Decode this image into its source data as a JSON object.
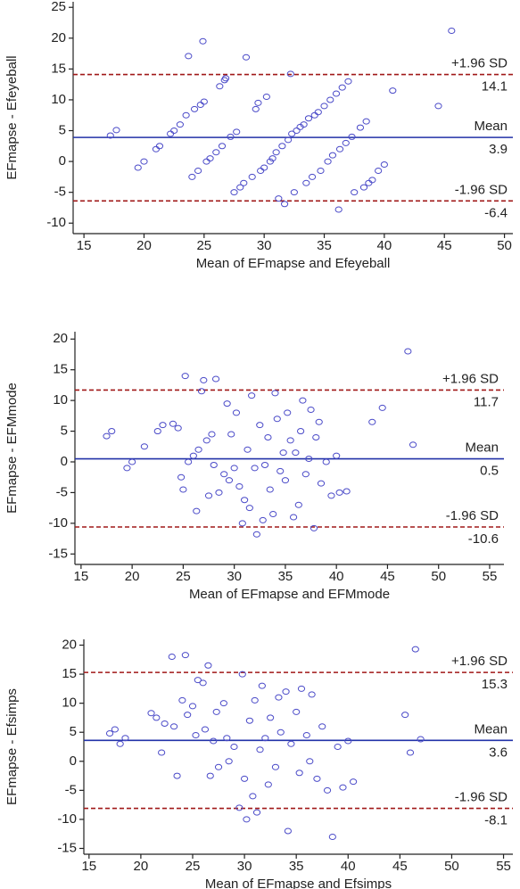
{
  "chart_data": [
    {
      "type": "scatter",
      "x_label": "Mean of EFmapse and Efeyeball",
      "y_label": "EFmapse - Efeyeball",
      "xlim": [
        14.1,
        50.7
      ],
      "ylim": [
        -11.7,
        25.9
      ],
      "xticks": [
        15,
        20,
        25,
        30,
        35,
        40,
        45,
        50
      ],
      "yticks": [
        -10,
        -5,
        0,
        5,
        10,
        15,
        20,
        25
      ],
      "color": "#4a4ac8",
      "x": [
        17.2,
        17.7,
        19.5,
        20,
        21,
        21.3,
        22.2,
        22.5,
        23,
        23.5,
        23.7,
        24,
        24.2,
        24.5,
        24.7,
        24.9,
        25,
        25.2,
        25.5,
        26,
        26.3,
        26.5,
        26.7,
        26.8,
        27.2,
        27.5,
        27.7,
        28,
        28.3,
        28.5,
        29,
        29.3,
        29.5,
        29.7,
        30,
        30.2,
        30.5,
        30.7,
        31,
        31.2,
        31.5,
        31.7,
        32,
        32.2,
        32.3,
        32.5,
        32.7,
        33,
        33.3,
        33.5,
        33.7,
        34,
        34.2,
        34.5,
        34.7,
        35,
        35.3,
        35.5,
        35.7,
        36,
        36.2,
        36.3,
        36.5,
        36.8,
        37,
        37.3,
        37.5,
        38,
        38.3,
        38.5,
        38.7,
        39,
        39.5,
        40,
        40.7,
        44.5,
        45.6
      ],
      "values": [
        4.2,
        5.1,
        -1,
        0,
        2,
        2.5,
        4.5,
        5,
        6,
        7.5,
        17.1,
        -2.5,
        8.5,
        -1.5,
        9.2,
        19.5,
        9.7,
        0,
        0.5,
        1.5,
        12.2,
        2.5,
        13.2,
        13.5,
        4,
        -5,
        4.8,
        -4.2,
        -3.5,
        16.9,
        -2.5,
        8.5,
        9.5,
        -1.5,
        -1,
        10.5,
        0,
        0.5,
        1.5,
        -6,
        2.5,
        -6.9,
        3.5,
        14.2,
        4.5,
        -5,
        5,
        5.6,
        6,
        -3.5,
        7,
        -2.5,
        7.5,
        8,
        -1.5,
        9,
        0,
        10,
        1,
        11,
        -7.8,
        2,
        12,
        3,
        13,
        4,
        -5,
        5.5,
        -4.2,
        6.5,
        -3.5,
        -3,
        -1.5,
        -0.5,
        11.5,
        9,
        21.2
      ],
      "lines": [
        {
          "label": "+1.96 SD",
          "value": 14.1,
          "color": "#a01818",
          "dashed": true
        },
        {
          "label": "Mean",
          "value": 3.9,
          "color": "#2232a8",
          "dashed": false
        },
        {
          "label": "-1.96 SD",
          "value": -6.4,
          "color": "#a01818",
          "dashed": true
        }
      ]
    },
    {
      "type": "scatter",
      "x_label": "Mean of EFmapse and EFMmode",
      "y_label": "EFmapse - EFMmode",
      "xlim": [
        14.4,
        56.4
      ],
      "ylim": [
        -16.7,
        21.2
      ],
      "xticks": [
        15,
        20,
        25,
        30,
        35,
        40,
        45,
        50,
        55
      ],
      "yticks": [
        -15,
        -10,
        -5,
        0,
        5,
        10,
        15,
        20
      ],
      "color": "#4a4ac8",
      "x": [
        17.5,
        18,
        19.5,
        20,
        21.2,
        22.5,
        23,
        24,
        24.5,
        24.8,
        25,
        25.2,
        25.5,
        26,
        26.3,
        26.5,
        26.8,
        27,
        27.3,
        27.5,
        27.8,
        28,
        28.2,
        28.5,
        29,
        29.3,
        29.5,
        29.7,
        30,
        30.2,
        30.5,
        30.8,
        31,
        31.3,
        31.5,
        31.7,
        32,
        32.2,
        32.5,
        32.8,
        33,
        33.3,
        33.5,
        33.8,
        34,
        34.2,
        34.5,
        34.8,
        35,
        35.2,
        35.5,
        35.8,
        36,
        36.3,
        36.5,
        36.7,
        37,
        37.3,
        37.5,
        37.8,
        38,
        38.3,
        38.5,
        39,
        39.5,
        40,
        40.3,
        41,
        43.5,
        44.5,
        47,
        47.5
      ],
      "values": [
        4.2,
        5,
        -1,
        0,
        2.5,
        5,
        6,
        6.2,
        5.5,
        -2.5,
        -4.5,
        14,
        0,
        1,
        -8,
        2,
        11.5,
        13.3,
        3.5,
        -5.5,
        4.5,
        -0.5,
        13.5,
        -5,
        -2,
        9.5,
        -3,
        4.5,
        -1,
        8,
        -4,
        -10,
        -6.2,
        2,
        -7.5,
        10.8,
        -1,
        -11.8,
        6,
        -9.5,
        -0.5,
        4,
        -4.5,
        -8.5,
        11.2,
        7,
        -1.5,
        1.5,
        -3,
        8,
        3.5,
        -9,
        1.5,
        -7,
        5,
        10,
        -2,
        0.5,
        8.5,
        -10.8,
        4,
        6.5,
        -3.5,
        0,
        -5.5,
        1,
        -5,
        -4.8,
        6.5,
        8.8,
        18,
        2.8
      ],
      "lines": [
        {
          "label": "+1.96 SD",
          "value": 11.7,
          "color": "#a01818",
          "dashed": true
        },
        {
          "label": "Mean",
          "value": 0.5,
          "color": "#2232a8",
          "dashed": false
        },
        {
          "label": "-1.96 SD",
          "value": -10.6,
          "color": "#a01818",
          "dashed": true
        }
      ]
    },
    {
      "type": "scatter",
      "x_label": "Mean of EFmapse and Efsimps",
      "y_label": "EFmapse - Efsimps",
      "xlim": [
        14.5,
        55.9
      ],
      "ylim": [
        -16,
        21
      ],
      "xticks": [
        15,
        20,
        25,
        30,
        35,
        40,
        45,
        50,
        55
      ],
      "yticks": [
        -15,
        -10,
        -5,
        0,
        5,
        10,
        15,
        20
      ],
      "color": "#4a4ac8",
      "x": [
        17,
        17.5,
        18,
        18.5,
        21,
        21.5,
        22,
        22.3,
        23,
        23.2,
        23.5,
        24,
        24.3,
        24.5,
        25,
        25.3,
        25.5,
        26,
        26.2,
        26.5,
        26.7,
        27,
        27.3,
        27.5,
        28,
        28.3,
        28.5,
        29,
        29.5,
        29.8,
        30,
        30.2,
        30.5,
        30.8,
        31,
        31.2,
        31.5,
        31.7,
        32,
        32.3,
        32.5,
        33,
        33.3,
        33.5,
        34,
        34.2,
        34.5,
        35,
        35.3,
        35.5,
        36,
        36.3,
        36.5,
        37,
        37.5,
        38,
        38.5,
        39,
        39.5,
        40,
        40.5,
        45.5,
        46,
        46.5,
        47
      ],
      "values": [
        4.8,
        5.5,
        3,
        4,
        8.3,
        7.5,
        1.5,
        6.5,
        18,
        6,
        -2.5,
        10.5,
        18.3,
        8,
        9.5,
        4.5,
        14,
        13.5,
        5.5,
        16.5,
        -2.5,
        3.5,
        8.5,
        -1,
        10,
        4,
        0,
        2.5,
        -8,
        15,
        -3,
        -10,
        7,
        -6,
        10.5,
        -8.8,
        2,
        13,
        4,
        -4,
        7.5,
        -1,
        11,
        5,
        12,
        -12,
        3,
        8.5,
        -2,
        12.5,
        4.5,
        0,
        11.5,
        -3,
        6,
        -5,
        -13,
        2.5,
        -4.5,
        3.5,
        -3.5,
        8,
        1.5,
        19.3,
        3.8
      ],
      "lines": [
        {
          "label": "+1.96 SD",
          "value": 15.3,
          "color": "#a01818",
          "dashed": true
        },
        {
          "label": "Mean",
          "value": 3.6,
          "color": "#2232a8",
          "dashed": false
        },
        {
          "label": "-1.96 SD",
          "value": -8.1,
          "color": "#a01818",
          "dashed": true
        }
      ]
    }
  ]
}
